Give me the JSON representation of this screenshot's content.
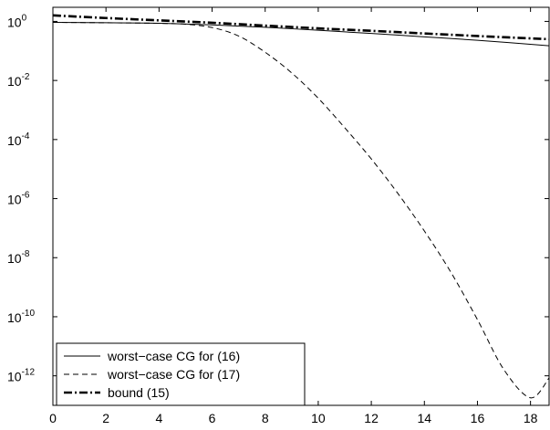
{
  "chart_data": {
    "type": "line",
    "title": "",
    "xlabel": "",
    "ylabel": "",
    "xlim": [
      0,
      18.7
    ],
    "ylim": [
      1e-13,
      3
    ],
    "yscale": "log",
    "grid": false,
    "legend_position": "bottom-left",
    "x_ticks": [
      0,
      2,
      4,
      6,
      8,
      10,
      12,
      14,
      16,
      18
    ],
    "y_ticks": [
      {
        "value": 1.0,
        "base": "10",
        "exp": "0"
      },
      {
        "value": 0.01,
        "base": "10",
        "exp": "-2"
      },
      {
        "value": 0.0001,
        "base": "10",
        "exp": "-4"
      },
      {
        "value": 1e-06,
        "base": "10",
        "exp": "-6"
      },
      {
        "value": 1e-08,
        "base": "10",
        "exp": "-8"
      },
      {
        "value": 1e-10,
        "base": "10",
        "exp": "-10"
      },
      {
        "value": 1e-12,
        "base": "10",
        "exp": "-12"
      }
    ],
    "series": [
      {
        "name": "worst−case CG for (16)",
        "style": "solid",
        "color": "#000000",
        "x": [
          0,
          2,
          4,
          6,
          8,
          10,
          12,
          14,
          16,
          18.7
        ],
        "y": [
          0.93,
          0.9,
          0.86,
          0.76,
          0.63,
          0.5,
          0.39,
          0.3,
          0.23,
          0.15
        ]
      },
      {
        "name": "worst−case CG for (17)",
        "style": "dashed",
        "color": "#000000",
        "x": [
          0,
          2,
          4,
          5,
          6,
          7,
          8,
          9,
          10,
          11,
          12,
          13,
          14,
          15,
          16,
          17,
          18,
          18.7
        ],
        "y": [
          0.93,
          0.9,
          0.86,
          0.8,
          0.62,
          0.32,
          0.09,
          0.018,
          0.0025,
          0.00025,
          2.2e-05,
          1.5e-06,
          8e-08,
          3.2e-09,
          8e-11,
          1.6e-12,
          1.8e-13,
          8.5e-13
        ]
      },
      {
        "name": "bound (15)",
        "style": "dashdot",
        "color": "#000000",
        "x": [
          0,
          2,
          4,
          6,
          8,
          10,
          12,
          14,
          16,
          18.7
        ],
        "y": [
          1.6,
          1.3,
          1.08,
          0.9,
          0.72,
          0.58,
          0.48,
          0.39,
          0.32,
          0.25
        ]
      }
    ]
  }
}
